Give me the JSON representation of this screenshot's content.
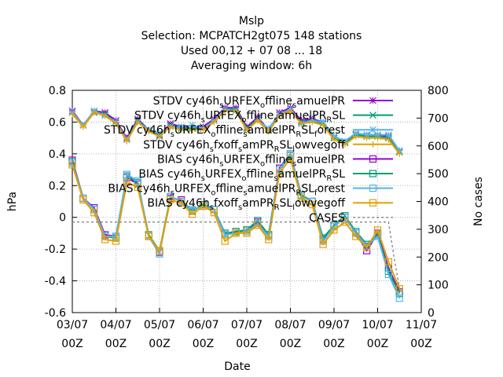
{
  "chart_data": {
    "type": "line",
    "title_lines": [
      "Mslp",
      "Selection: MCPATCH2gt075     148 stations",
      "Used  00,12  + 07 08 ... 18",
      "Averaging window:  6h"
    ],
    "xlabel": "Date",
    "ylabel": "hPa",
    "y2label": "No cases",
    "ylim": [
      -0.6,
      0.8
    ],
    "y2lim": [
      0,
      800
    ],
    "xlim": [
      "03/07 00Z",
      "11/07 00Z"
    ],
    "x_ticks": [
      {
        "line1": "03/07",
        "line2": "00Z"
      },
      {
        "line1": "04/07",
        "line2": "00Z"
      },
      {
        "line1": "05/07",
        "line2": "00Z"
      },
      {
        "line1": "06/07",
        "line2": "00Z"
      },
      {
        "line1": "07/07",
        "line2": "00Z"
      },
      {
        "line1": "08/07",
        "line2": "00Z"
      },
      {
        "line1": "09/07",
        "line2": "00Z"
      },
      {
        "line1": "10/07",
        "line2": "00Z"
      },
      {
        "line1": "11/07",
        "line2": "00Z"
      }
    ],
    "y_ticks": [
      "-0.6",
      "-0.4",
      "-0.2",
      "0",
      "0.2",
      "0.4",
      "0.6",
      "0.8"
    ],
    "y2_ticks": [
      "0",
      "100",
      "200",
      "300",
      "400",
      "500",
      "600",
      "700",
      "800"
    ],
    "grid": true,
    "legend_position": "top-right",
    "x_hours": [
      0,
      6,
      12,
      18,
      24,
      30,
      36,
      42,
      48,
      54,
      60,
      66,
      72,
      78,
      84,
      90,
      96,
      102,
      108,
      114,
      120,
      126,
      132,
      138,
      144,
      150,
      156,
      162,
      168,
      174,
      180,
      186,
      192,
      198,
      204
    ],
    "series": [
      {
        "name": "STDV cy46h_sURFEX_offline_samuelPR",
        "color": "#9400d3",
        "marker": "star",
        "axis": "y1",
        "values": [
          0.67,
          0.58,
          0.67,
          0.66,
          0.61,
          0.5,
          0.62,
          0.55,
          0.52,
          0.59,
          0.57,
          0.56,
          0.57,
          0.62,
          0.69,
          0.69,
          0.57,
          0.63,
          0.55,
          0.66,
          0.69,
          0.61,
          0.62,
          0.6,
          0.5,
          0.47,
          0.52,
          0.52,
          0.52,
          0.51,
          0.42
        ]
      },
      {
        "name": "STDV cy46h_sURFEX_offline_samuelPR_RSL",
        "color": "#009e73",
        "marker": "x",
        "axis": "y1",
        "values": [
          0.66,
          0.58,
          0.66,
          0.65,
          0.6,
          0.49,
          0.61,
          0.55,
          0.51,
          0.58,
          0.56,
          0.56,
          0.56,
          0.61,
          0.68,
          0.68,
          0.56,
          0.62,
          0.55,
          0.65,
          0.68,
          0.6,
          0.61,
          0.59,
          0.5,
          0.47,
          0.52,
          0.51,
          0.51,
          0.5,
          0.41
        ]
      },
      {
        "name": "STDV cy46h_sURFEX_offline_samuelPR_RSL_forest",
        "color": "#56b4e9",
        "marker": "star",
        "axis": "y1",
        "values": [
          0.66,
          0.58,
          0.67,
          0.64,
          0.6,
          0.49,
          0.6,
          0.55,
          0.53,
          0.57,
          0.57,
          0.58,
          0.56,
          0.61,
          0.68,
          0.67,
          0.55,
          0.61,
          0.56,
          0.65,
          0.68,
          0.59,
          0.61,
          0.6,
          0.51,
          0.48,
          0.53,
          0.52,
          0.52,
          0.52,
          0.42
        ]
      },
      {
        "name": "STDV cy46h_sfxoff_samPR_RSL_lowvegoff",
        "color": "#e69f00",
        "marker": "plus",
        "axis": "y1",
        "values": [
          0.65,
          0.57,
          0.66,
          0.64,
          0.59,
          0.48,
          0.6,
          0.54,
          0.51,
          0.57,
          0.55,
          0.55,
          0.55,
          0.6,
          0.67,
          0.67,
          0.55,
          0.61,
          0.54,
          0.64,
          0.67,
          0.59,
          0.6,
          0.58,
          0.49,
          0.46,
          0.51,
          0.5,
          0.5,
          0.49,
          0.4
        ]
      },
      {
        "name": "BIAS cy46h_sURFEX_offline_samuelPR",
        "color": "#9400d3",
        "marker": "square",
        "axis": "y1",
        "values": [
          0.36,
          0.12,
          0.06,
          -0.11,
          -0.12,
          0.25,
          0.21,
          -0.12,
          -0.22,
          0.12,
          0.11,
          0.04,
          0.08,
          0.05,
          -0.11,
          -0.09,
          -0.08,
          -0.03,
          -0.11,
          0.31,
          0.4,
          0.14,
          0.1,
          -0.14,
          -0.05,
          0.0,
          -0.1,
          -0.21,
          -0.1,
          -0.32,
          -0.47
        ]
      },
      {
        "name": "BIAS cy46h_sURFEX_offline_samuelPR_RSL",
        "color": "#009e73",
        "marker": "square",
        "axis": "y1",
        "values": [
          0.35,
          0.12,
          0.05,
          -0.12,
          -0.13,
          0.26,
          0.22,
          -0.11,
          -0.21,
          0.13,
          0.1,
          0.04,
          0.08,
          0.05,
          -0.1,
          -0.09,
          -0.08,
          -0.02,
          -0.11,
          0.3,
          0.39,
          0.14,
          0.1,
          -0.13,
          -0.05,
          0.01,
          -0.09,
          -0.17,
          -0.11,
          -0.34,
          -0.48
        ]
      },
      {
        "name": "BIAS cy46h_sURFEX_offline_samuelPR_RSL_forest",
        "color": "#56b4e9",
        "marker": "square",
        "axis": "y1",
        "values": [
          0.34,
          0.12,
          0.05,
          -0.12,
          -0.12,
          0.27,
          0.23,
          -0.12,
          -0.23,
          0.13,
          0.1,
          0.05,
          0.07,
          0.05,
          -0.11,
          -0.1,
          -0.09,
          -0.04,
          -0.12,
          0.3,
          0.4,
          0.13,
          0.1,
          -0.15,
          -0.06,
          0.0,
          -0.1,
          -0.18,
          -0.12,
          -0.36,
          -0.51
        ]
      },
      {
        "name": "BIAS cy46h_sfxoff_samPR_RSL_lowvegoff",
        "color": "#e69f00",
        "marker": "square",
        "axis": "y1",
        "values": [
          0.33,
          0.11,
          0.03,
          -0.14,
          -0.15,
          0.22,
          0.19,
          -0.12,
          -0.21,
          0.11,
          0.09,
          0.02,
          0.07,
          0.03,
          -0.15,
          -0.1,
          -0.1,
          -0.05,
          -0.14,
          0.28,
          0.37,
          0.12,
          0.08,
          -0.17,
          -0.08,
          -0.03,
          -0.12,
          -0.19,
          -0.08,
          -0.28,
          -0.45
        ]
      }
    ],
    "cases": {
      "name": "CASES",
      "color": "#888888",
      "axis": "y2",
      "values": [
        326,
        326,
        326,
        326,
        326,
        200,
        88
      ]
    },
    "cases_x_hours": [
      0,
      150,
      162,
      168,
      174,
      177,
      180
    ]
  }
}
